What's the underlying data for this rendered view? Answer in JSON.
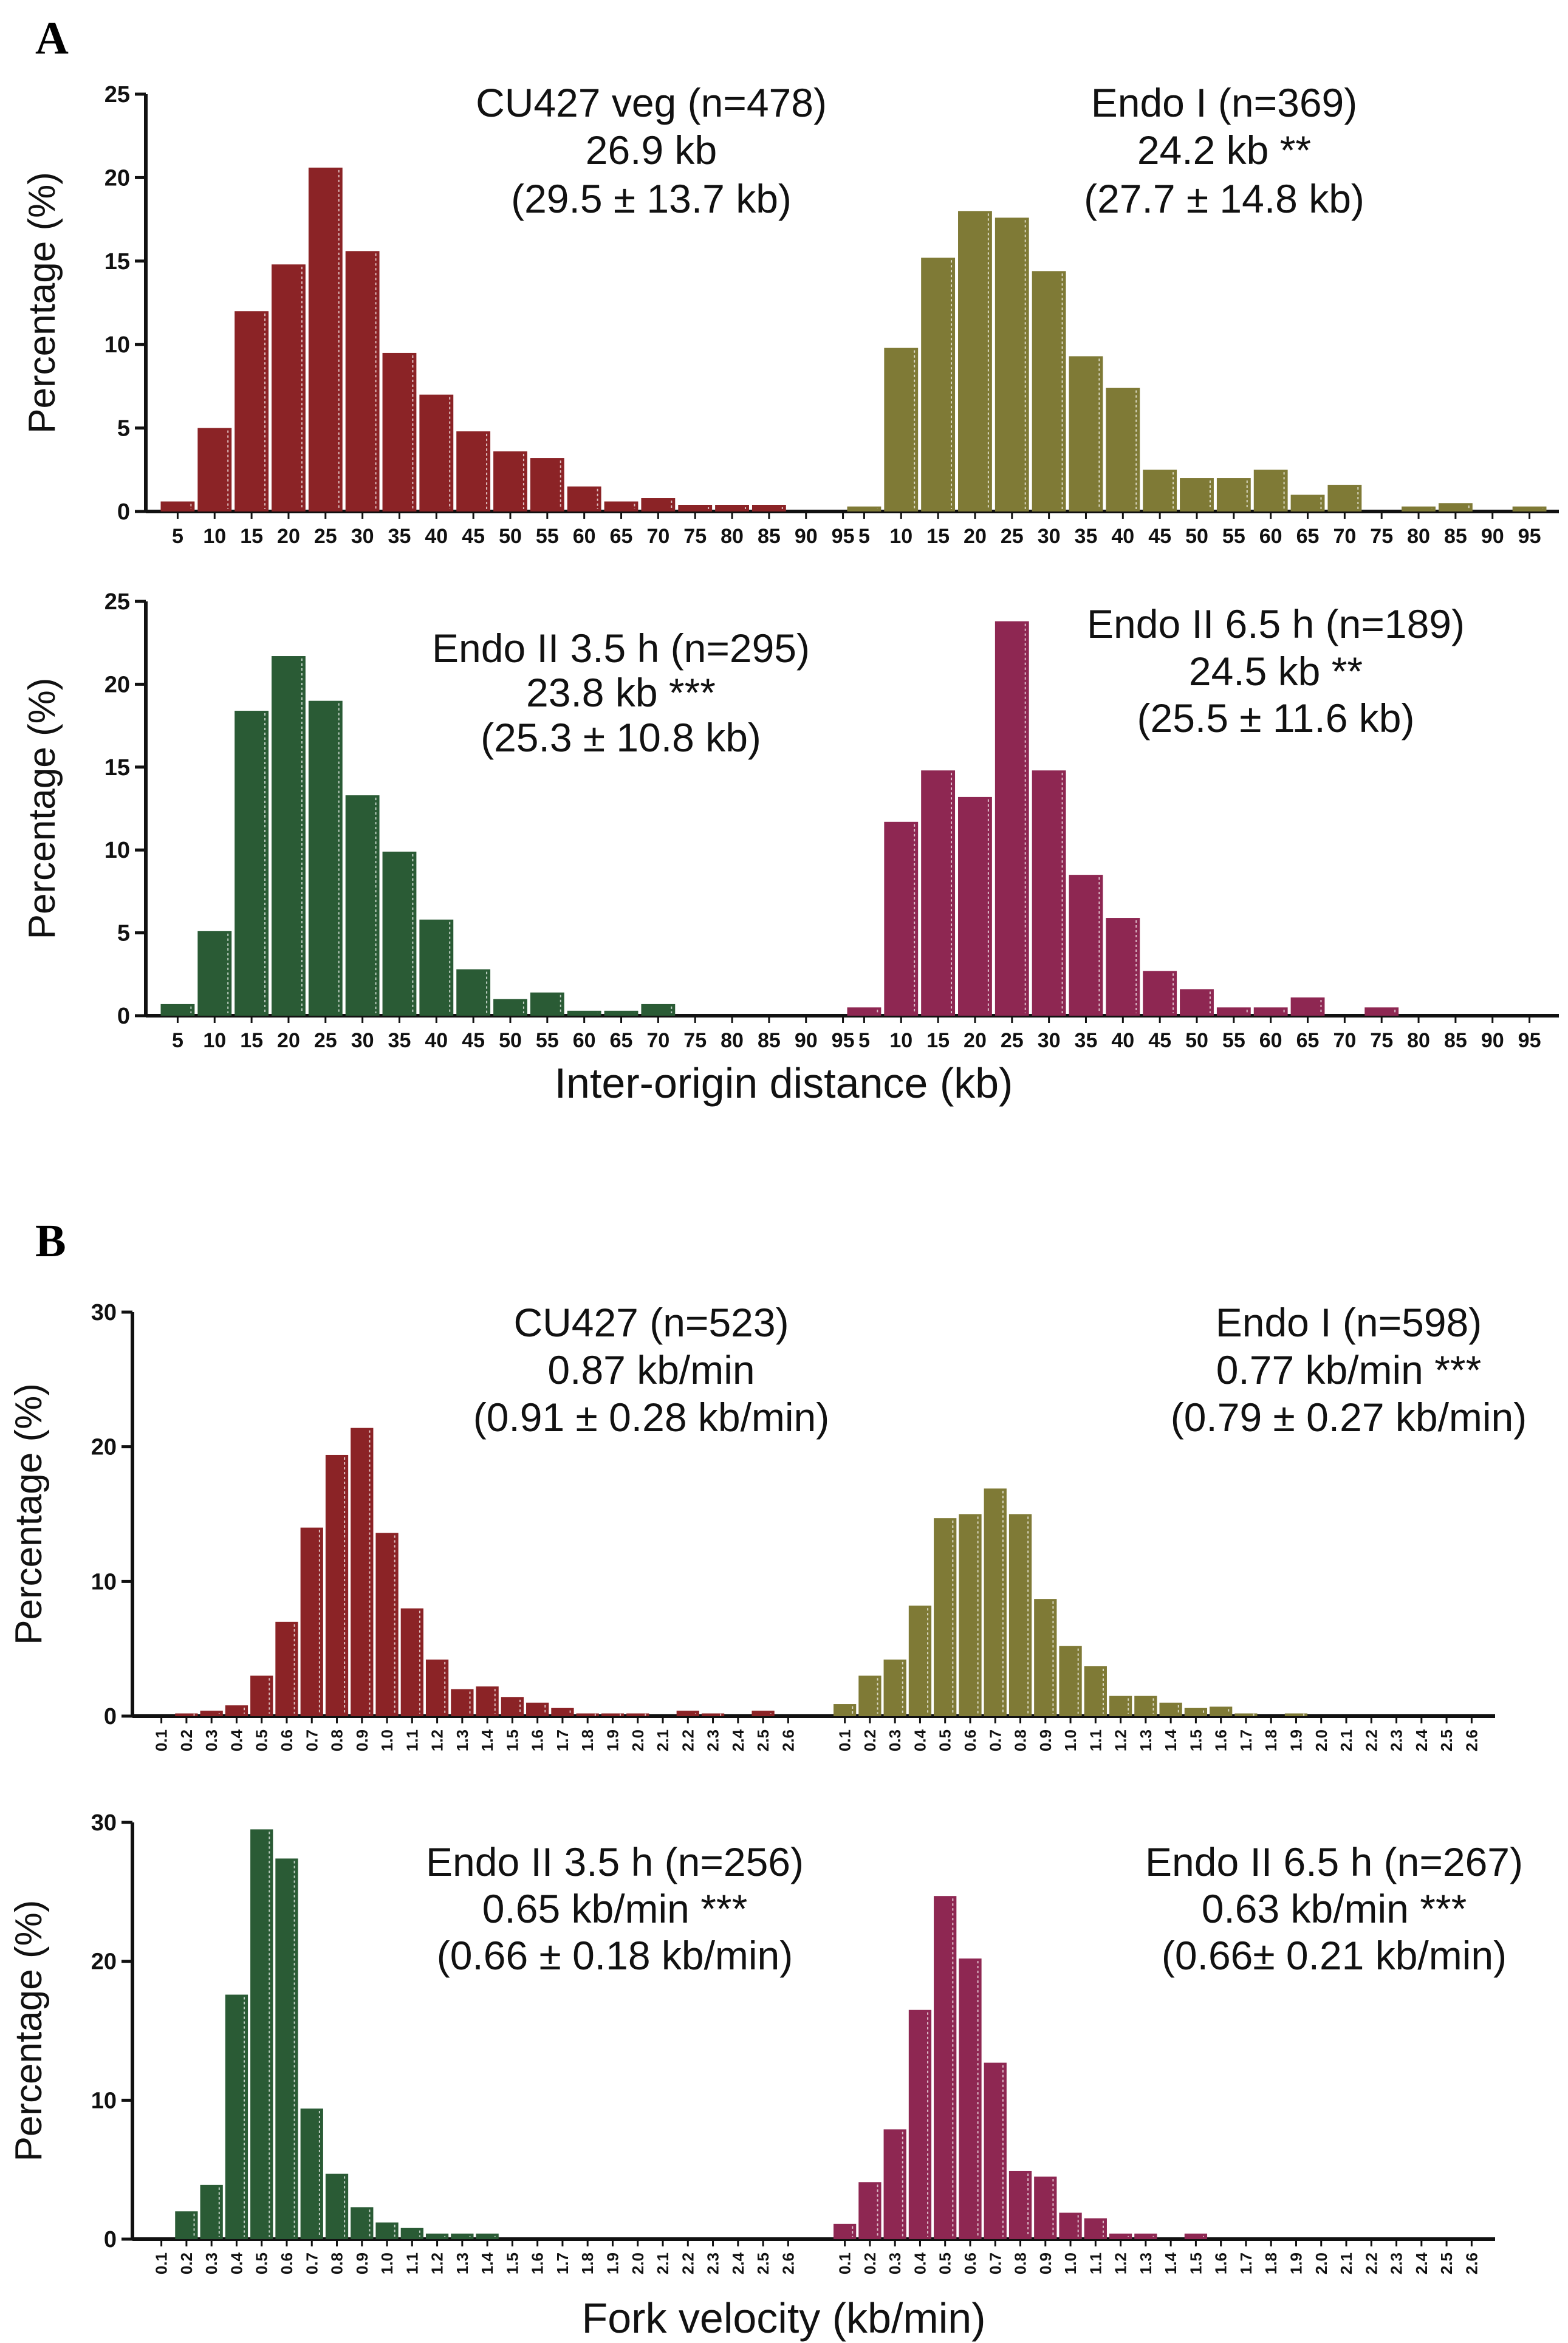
{
  "panels": [
    {
      "letter": "A",
      "xaxis_title": "Inter-origin distance (kb)"
    },
    {
      "letter": "B",
      "xaxis_title": "Fork velocity (kb/min)"
    }
  ],
  "colors": {
    "cu427": "#8B2326",
    "endo1": "#7F7A36",
    "endo2_35": "#2A5B35",
    "endo2_65": "#8E2752"
  },
  "chart_data": [
    {
      "type": "bar",
      "panel": "A",
      "row": 1,
      "ylabel": "Percentage (%)",
      "ylim": [
        0,
        25
      ],
      "yticks": [
        0,
        5,
        10,
        15,
        20,
        25
      ],
      "categories": [
        "5",
        "10",
        "15",
        "20",
        "25",
        "30",
        "35",
        "40",
        "45",
        "50",
        "55",
        "60",
        "65",
        "70",
        "75",
        "80",
        "85",
        "90",
        "95"
      ],
      "groups": [
        {
          "name": "CU427 veg",
          "color": "#8B2326",
          "annotation": [
            "CU427 veg (n=478)",
            "26.9 kb",
            "(29.5  ± 13.7 kb)"
          ],
          "values": [
            0.6,
            5.0,
            12.0,
            14.8,
            20.6,
            15.6,
            9.5,
            7.0,
            4.8,
            3.6,
            3.2,
            1.5,
            0.6,
            0.8,
            0.4,
            0.4,
            0.4,
            0,
            0
          ]
        },
        {
          "name": "Endo I",
          "color": "#7F7A36",
          "annotation": [
            "Endo I (n=369)",
            "24.2 kb  **",
            "(27.7  ± 14.8 kb)"
          ],
          "values": [
            0.3,
            9.8,
            15.2,
            18.0,
            17.6,
            14.4,
            9.3,
            7.4,
            2.5,
            2.0,
            2.0,
            2.5,
            1.0,
            1.6,
            0,
            0.3,
            0.5,
            0,
            0.3
          ]
        }
      ]
    },
    {
      "type": "bar",
      "panel": "A",
      "row": 2,
      "ylabel": "Percentage (%)",
      "ylim": [
        0,
        25
      ],
      "yticks": [
        0,
        5,
        10,
        15,
        20,
        25
      ],
      "categories": [
        "5",
        "10",
        "15",
        "20",
        "25",
        "30",
        "35",
        "40",
        "45",
        "50",
        "55",
        "60",
        "65",
        "70",
        "75",
        "80",
        "85",
        "90",
        "95"
      ],
      "groups": [
        {
          "name": "Endo II 3.5 h",
          "color": "#2A5B35",
          "annotation": [
            "Endo II 3.5 h (n=295)",
            "23.8 kb   ***",
            "(25.3   ±  10.8 kb)"
          ],
          "values": [
            0.7,
            5.1,
            18.4,
            21.7,
            19.0,
            13.3,
            9.9,
            5.8,
            2.8,
            1.0,
            1.4,
            0.3,
            0.3,
            0.7,
            0,
            0,
            0,
            0,
            0
          ]
        },
        {
          "name": "Endo II 6.5 h",
          "color": "#8E2752",
          "annotation": [
            "Endo II 6.5 h (n=189)",
            "24.5 kb   **",
            "(25.5   ± 11.6 kb)"
          ],
          "values": [
            0.5,
            11.7,
            14.8,
            13.2,
            23.8,
            14.8,
            8.5,
            5.9,
            2.7,
            1.6,
            0.5,
            0.5,
            1.1,
            0,
            0.5,
            0,
            0,
            0,
            0
          ]
        }
      ]
    },
    {
      "type": "bar",
      "panel": "B",
      "row": 1,
      "ylabel": "Percentage (%)",
      "ylim": [
        0,
        30
      ],
      "yticks": [
        0,
        10,
        20,
        30
      ],
      "categories": [
        "0.1",
        "0.2",
        "0.3",
        "0.4",
        "0.5",
        "0.6",
        "0.7",
        "0.8",
        "0.9",
        "1.0",
        "1.1",
        "1.2",
        "1.3",
        "1.4",
        "1.5",
        "1.6",
        "1.7",
        "1.8",
        "1.9",
        "2.0",
        "2.1",
        "2.2",
        "2.3",
        "2.4",
        "2.5",
        "2.6"
      ],
      "groups": [
        {
          "name": "CU427",
          "color": "#8B2326",
          "annotation": [
            "CU427 (n=523)",
            "0.87 kb/min",
            "(0.91 ± 0.28 kb/min)"
          ],
          "values": [
            0,
            0.2,
            0.4,
            0.8,
            3.0,
            7.0,
            14.0,
            19.4,
            21.4,
            13.6,
            8.0,
            4.2,
            2.0,
            2.2,
            1.4,
            1.0,
            0.6,
            0.2,
            0.2,
            0.2,
            0,
            0.4,
            0.2,
            0,
            0.4,
            0
          ]
        },
        {
          "name": "Endo I",
          "color": "#7F7A36",
          "annotation": [
            "Endo I (n=598)",
            "0.77 kb/min   ***",
            "(0.79 ±  0.27 kb/min)"
          ],
          "values": [
            0.9,
            3.0,
            4.2,
            8.2,
            14.7,
            15.0,
            16.9,
            15.0,
            8.7,
            5.2,
            3.7,
            1.5,
            1.5,
            1.0,
            0.6,
            0.7,
            0.2,
            0,
            0.2,
            0,
            0,
            0,
            0,
            0,
            0,
            0
          ]
        }
      ]
    },
    {
      "type": "bar",
      "panel": "B",
      "row": 2,
      "ylabel": "Percentage (%)",
      "ylim": [
        0,
        30
      ],
      "yticks": [
        0,
        10,
        20,
        30
      ],
      "categories": [
        "0.1",
        "0.2",
        "0.3",
        "0.4",
        "0.5",
        "0.6",
        "0.7",
        "0.8",
        "0.9",
        "1.0",
        "1.1",
        "1.2",
        "1.3",
        "1.4",
        "1.5",
        "1.6",
        "1.7",
        "1.8",
        "1.9",
        "2.0",
        "2.1",
        "2.2",
        "2.3",
        "2.4",
        "2.5",
        "2.6"
      ],
      "groups": [
        {
          "name": "Endo II 3.5 h",
          "color": "#2A5B35",
          "annotation": [
            "Endo II 3.5 h (n=256)",
            "0.65 kb/min  ***",
            "(0.66 ± 0.18 kb/min)"
          ],
          "values": [
            0,
            2.0,
            3.9,
            17.6,
            29.5,
            27.4,
            9.4,
            4.7,
            2.3,
            1.2,
            0.8,
            0.4,
            0.4,
            0.4,
            0,
            0,
            0,
            0,
            0,
            0,
            0,
            0,
            0,
            0,
            0,
            0
          ]
        },
        {
          "name": "Endo II 6.5 h",
          "color": "#8E2752",
          "annotation": [
            "Endo II 6.5 h (n=267)",
            "0.63 kb/min   ***",
            "(0.66±   0.21 kb/min)"
          ],
          "values": [
            1.1,
            4.1,
            7.9,
            16.5,
            24.7,
            20.2,
            12.7,
            4.9,
            4.5,
            1.9,
            1.5,
            0.4,
            0.4,
            0,
            0.4,
            0,
            0,
            0,
            0,
            0,
            0,
            0,
            0,
            0,
            0,
            0
          ]
        }
      ]
    }
  ]
}
